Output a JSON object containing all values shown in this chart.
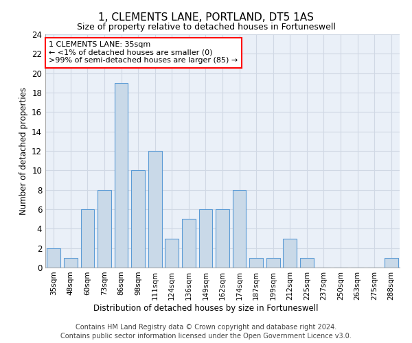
{
  "title": "1, CLEMENTS LANE, PORTLAND, DT5 1AS",
  "subtitle": "Size of property relative to detached houses in Fortuneswell",
  "xlabel": "Distribution of detached houses by size in Fortuneswell",
  "ylabel": "Number of detached properties",
  "categories": [
    "35sqm",
    "48sqm",
    "60sqm",
    "73sqm",
    "86sqm",
    "98sqm",
    "111sqm",
    "124sqm",
    "136sqm",
    "149sqm",
    "162sqm",
    "174sqm",
    "187sqm",
    "199sqm",
    "212sqm",
    "225sqm",
    "237sqm",
    "250sqm",
    "263sqm",
    "275sqm",
    "288sqm"
  ],
  "values": [
    2,
    1,
    6,
    8,
    19,
    10,
    12,
    3,
    5,
    6,
    6,
    8,
    1,
    1,
    3,
    1,
    0,
    0,
    0,
    0,
    1
  ],
  "bar_color": "#c9d9e8",
  "bar_edge_color": "#5b9bd5",
  "ylim": [
    0,
    24
  ],
  "yticks": [
    0,
    2,
    4,
    6,
    8,
    10,
    12,
    14,
    16,
    18,
    20,
    22,
    24
  ],
  "grid_color": "#d0d8e4",
  "background_color": "#eaf0f8",
  "annotation_text": "1 CLEMENTS LANE: 35sqm\n← <1% of detached houses are smaller (0)\n>99% of semi-detached houses are larger (85) →",
  "annotation_box_color": "white",
  "annotation_box_edge_color": "red",
  "footer_line1": "Contains HM Land Registry data © Crown copyright and database right 2024.",
  "footer_line2": "Contains public sector information licensed under the Open Government Licence v3.0."
}
